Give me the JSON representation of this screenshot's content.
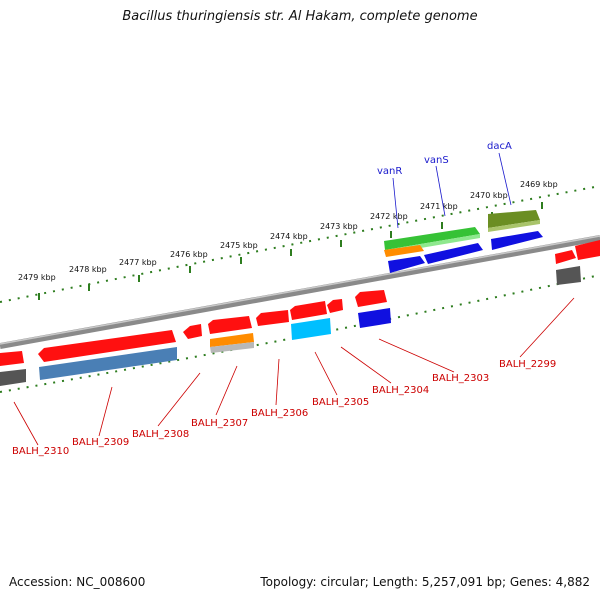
{
  "title": "Bacillus thuringiensis str. Al Hakam, complete genome",
  "footer": {
    "accession": "Accession: NC_008600",
    "summary": "Topology: circular; Length: 5,257,091 bp; Genes: 4,882"
  },
  "colors": {
    "backbone": "#8a8a8a",
    "tick": "#2e7d1f",
    "label_red": "#cc0000",
    "label_blue": "#1a1acc"
  },
  "kbp_ticks": [
    "2479 kbp",
    "2478 kbp",
    "2477 kbp",
    "2476 kbp",
    "2475 kbp",
    "2474 kbp",
    "2473 kbp",
    "2472 kbp",
    "2471 kbp",
    "2470 kbp",
    "2469 kbp"
  ],
  "gene_labels": [
    "BALH_2310",
    "BALH_2309",
    "BALH_2308",
    "BALH_2307",
    "BALH_2306",
    "BALH_2305",
    "BALH_2304",
    "BALH_2303",
    "BALH_2299"
  ],
  "top_labels": [
    "vanR",
    "vanS",
    "dacA"
  ]
}
